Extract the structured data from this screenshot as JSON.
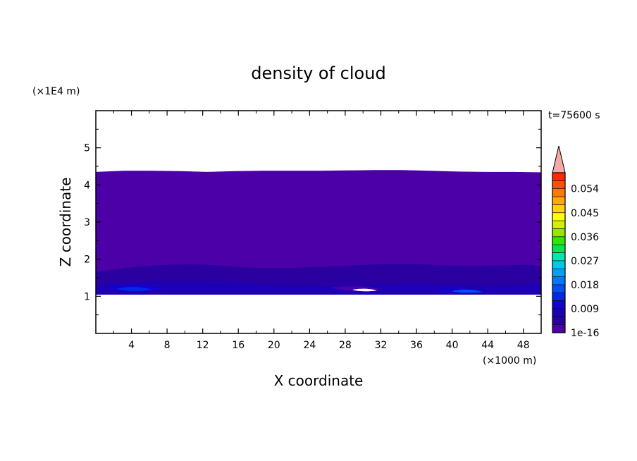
{
  "chart_data": {
    "type": "heatmap",
    "title": "density of cloud",
    "xlabel": "X coordinate",
    "ylabel": "Z coordinate",
    "x_unit": "(×1000 m)",
    "y_unit": "(×1E4 m)",
    "time_label": "t=75600 s",
    "xlim": [
      0,
      50
    ],
    "ylim": [
      0,
      6
    ],
    "x_ticks": [
      "4",
      "8",
      "12",
      "16",
      "20",
      "24",
      "28",
      "32",
      "36",
      "40",
      "44",
      "48"
    ],
    "y_ticks": [
      "1",
      "2",
      "3",
      "4",
      "5"
    ],
    "colorbar": {
      "tick_labels": [
        "1e-16",
        "0.009",
        "0.018",
        "0.027",
        "0.036",
        "0.045",
        "0.054"
      ],
      "levels": [
        0,
        0.003,
        0.006,
        0.009,
        0.012,
        0.015,
        0.018,
        0.021,
        0.024,
        0.027,
        0.03,
        0.033,
        0.036,
        0.039,
        0.042,
        0.045,
        0.048,
        0.051,
        0.054,
        0.057,
        0.06
      ],
      "colors": [
        "#4b00a8",
        "#2a00a0",
        "#1e00b4",
        "#1400d0",
        "#0028e6",
        "#0050f0",
        "#0078ff",
        "#00a0ff",
        "#00c8e6",
        "#00e6b4",
        "#00e650",
        "#32e600",
        "#96e600",
        "#d2f000",
        "#ffff00",
        "#ffd200",
        "#ffaa00",
        "#ff7800",
        "#ff5000",
        "#ff2800",
        "#f00000"
      ],
      "extend_color": "#f4a9a8"
    },
    "cloud_region": {
      "x_range": [
        0,
        50
      ],
      "base_z": 1.05,
      "top_z": [
        4.35,
        4.38,
        4.38,
        4.37,
        4.35,
        4.37,
        4.38,
        4.38,
        4.38,
        4.39,
        4.4,
        4.4,
        4.38,
        4.36,
        4.35,
        4.35,
        4.34
      ],
      "dominant_value": "1e-16"
    }
  }
}
